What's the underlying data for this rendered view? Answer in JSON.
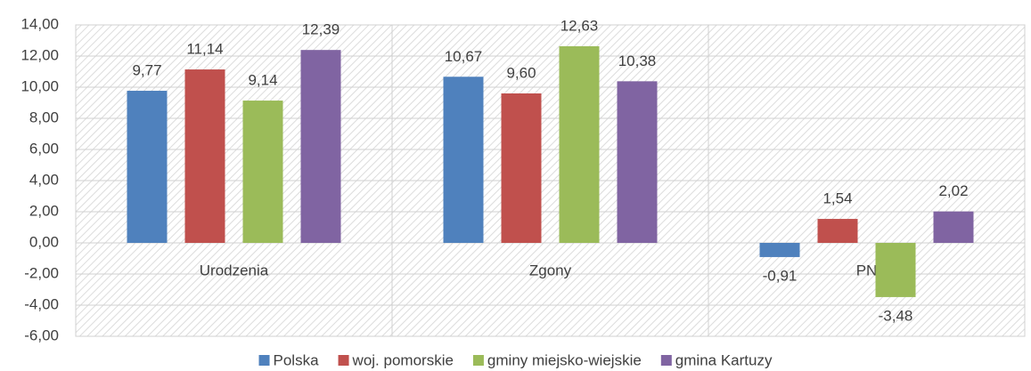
{
  "chart_data": {
    "type": "bar",
    "categories": [
      "Urodzenia",
      "Zgony",
      "PN"
    ],
    "series": [
      {
        "name": "Polska",
        "color": "#4f81bd",
        "values": [
          9.77,
          10.67,
          -0.91
        ],
        "value_labels": [
          "9,77",
          "10,67",
          "-0,91"
        ]
      },
      {
        "name": "woj. pomorskie",
        "color": "#c0504d",
        "values": [
          11.14,
          9.6,
          1.54
        ],
        "value_labels": [
          "11,14",
          "9,60",
          "1,54"
        ]
      },
      {
        "name": "gminy miejsko-wiejskie",
        "color": "#9bbb59",
        "values": [
          9.14,
          12.63,
          -3.48
        ],
        "value_labels": [
          "9,14",
          "12,63",
          "-3,48"
        ]
      },
      {
        "name": "gmina Kartuzy",
        "color": "#8064a2",
        "values": [
          12.39,
          10.38,
          2.02
        ],
        "value_labels": [
          "12,39",
          "10,38",
          "2,02"
        ]
      }
    ],
    "ylim": [
      -6,
      14
    ],
    "yticks": [
      {
        "value": -6,
        "label": "-6,00"
      },
      {
        "value": -4,
        "label": "-4,00"
      },
      {
        "value": -2,
        "label": "-2,00"
      },
      {
        "value": 0,
        "label": "0,00"
      },
      {
        "value": 2,
        "label": "2,00"
      },
      {
        "value": 4,
        "label": "4,00"
      },
      {
        "value": 6,
        "label": "6,00"
      },
      {
        "value": 8,
        "label": "8,00"
      },
      {
        "value": 10,
        "label": "10,00"
      },
      {
        "value": 12,
        "label": "12,00"
      },
      {
        "value": 14,
        "label": "14,00"
      }
    ],
    "grid": true,
    "legend": "bottom"
  }
}
